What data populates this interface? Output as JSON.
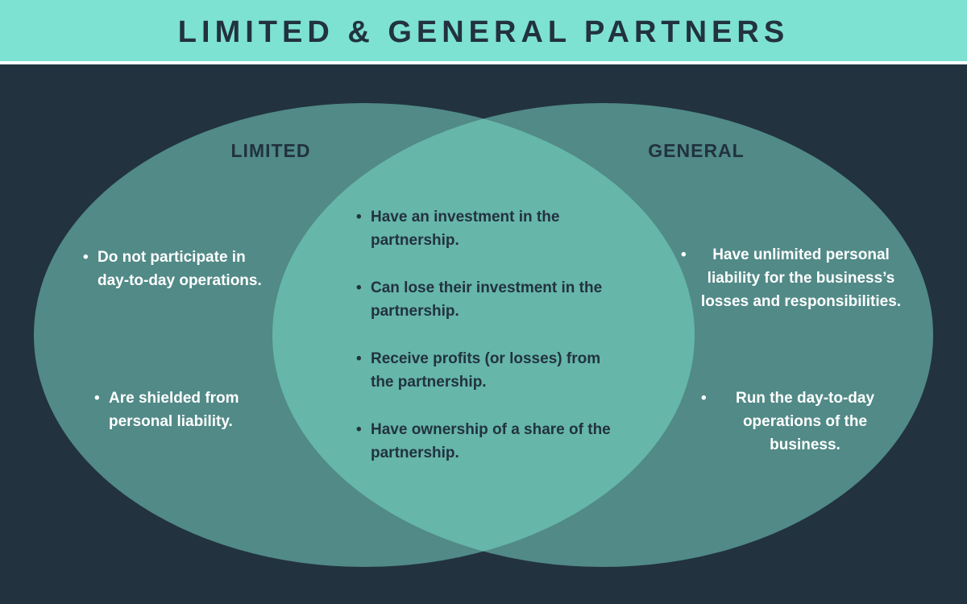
{
  "title": "LIMITED & GENERAL PARTNERS",
  "colors": {
    "header_bg": "#7de2d1",
    "page_bg": "#22323f",
    "circle_fill": "#518a87",
    "overlap_fill": "#66b6aa",
    "text_dark": "#22323f",
    "text_light": "#ffffff"
  },
  "sets": {
    "limited": {
      "label": "LIMITED",
      "items": [
        "Do not participate in day-to-day operations.",
        "Are shielded from personal liability."
      ]
    },
    "general": {
      "label": "GENERAL",
      "items": [
        "Have unlimited personal liability for the business’s losses and responsibilities.",
        "Run the day-to-day operations of the business."
      ]
    },
    "shared": {
      "items": [
        "Have an investment in the partnership.",
        "Can lose their investment in the partnership.",
        "Receive profits (or losses) from the partnership.",
        "Have ownership of a share of the partnership."
      ]
    }
  }
}
